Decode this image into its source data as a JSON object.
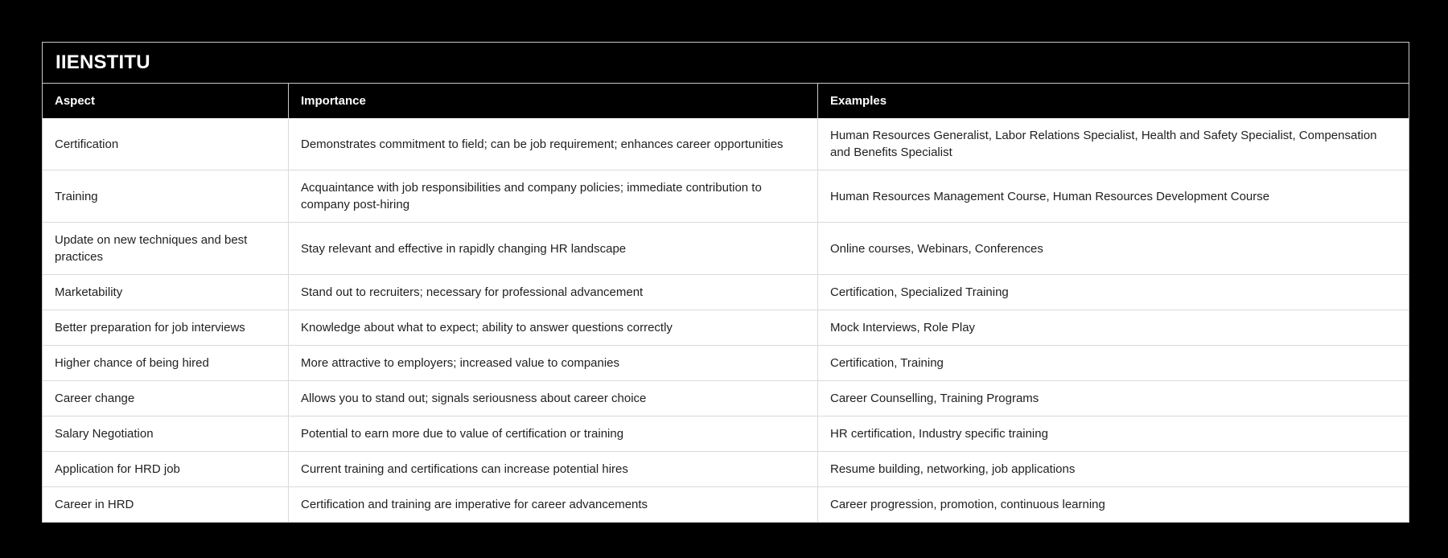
{
  "brand": {
    "title": "IIENSTITU"
  },
  "table": {
    "columns": [
      "Aspect",
      "Importance",
      "Examples"
    ],
    "rows": [
      {
        "aspect": "Certification",
        "importance": "Demonstrates commitment to field; can be job requirement; enhances career opportunities",
        "examples": "Human Resources Generalist, Labor Relations Specialist, Health and Safety Specialist, Compensation and Benefits Specialist"
      },
      {
        "aspect": "Training",
        "importance": "Acquaintance with job responsibilities and company policies; immediate contribution to company post-hiring",
        "examples": "Human Resources Management Course, Human Resources Development Course"
      },
      {
        "aspect": "Update on new techniques and best practices",
        "importance": "Stay relevant and effective in rapidly changing HR landscape",
        "examples": "Online courses, Webinars, Conferences"
      },
      {
        "aspect": "Marketability",
        "importance": "Stand out to recruiters; necessary for professional advancement",
        "examples": "Certification, Specialized Training"
      },
      {
        "aspect": "Better preparation for job interviews",
        "importance": "Knowledge about what to expect; ability to answer questions correctly",
        "examples": "Mock Interviews, Role Play"
      },
      {
        "aspect": "Higher chance of being hired",
        "importance": "More attractive to employers; increased value to companies",
        "examples": "Certification, Training"
      },
      {
        "aspect": "Career change",
        "importance": "Allows you to stand out; signals seriousness about career choice",
        "examples": "Career Counselling, Training Programs"
      },
      {
        "aspect": "Salary Negotiation",
        "importance": "Potential to earn more due to value of certification or training",
        "examples": "HR certification, Industry specific training"
      },
      {
        "aspect": "Application for HRD job",
        "importance": "Current training and certifications can increase potential hires",
        "examples": "Resume building, networking, job applications"
      },
      {
        "aspect": "Career in HRD",
        "importance": "Certification and training are imperative for career advancements",
        "examples": "Career progression, promotion, continuous learning"
      }
    ]
  },
  "colors": {
    "page_background": "#000000",
    "header_background": "#000000",
    "header_text": "#ffffff",
    "body_background": "#ffffff",
    "body_text": "#1f1f1f",
    "outer_border": "#c9c9c9",
    "row_divider": "#dadada"
  }
}
